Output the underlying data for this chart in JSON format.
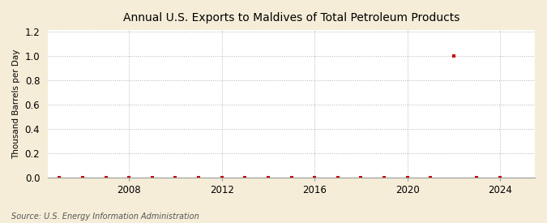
{
  "title": "Annual U.S. Exports to Maldives of Total Petroleum Products",
  "ylabel": "Thousand Barrels per Day",
  "source": "Source: U.S. Energy Information Administration",
  "figure_bg_color": "#F5EDD8",
  "plot_bg_color": "#FFFFFF",
  "grid_color": "#AAAAAA",
  "marker_color": "#CC0000",
  "xlim": [
    2004.5,
    2025.5
  ],
  "ylim": [
    0.0,
    1.21
  ],
  "yticks": [
    0.0,
    0.2,
    0.4,
    0.6,
    0.8,
    1.0,
    1.2
  ],
  "xticks": [
    2008,
    2012,
    2016,
    2020,
    2024
  ],
  "years": [
    2005,
    2006,
    2007,
    2008,
    2009,
    2010,
    2011,
    2012,
    2013,
    2014,
    2015,
    2016,
    2017,
    2018,
    2019,
    2020,
    2021,
    2022,
    2023,
    2024
  ],
  "values": [
    0.0,
    0.0,
    0.0,
    0.0,
    0.0,
    0.0,
    0.0,
    0.0,
    0.0,
    0.0,
    0.0,
    0.0,
    0.0,
    0.0,
    0.0,
    0.0,
    0.0,
    1.0,
    0.0,
    0.0
  ]
}
